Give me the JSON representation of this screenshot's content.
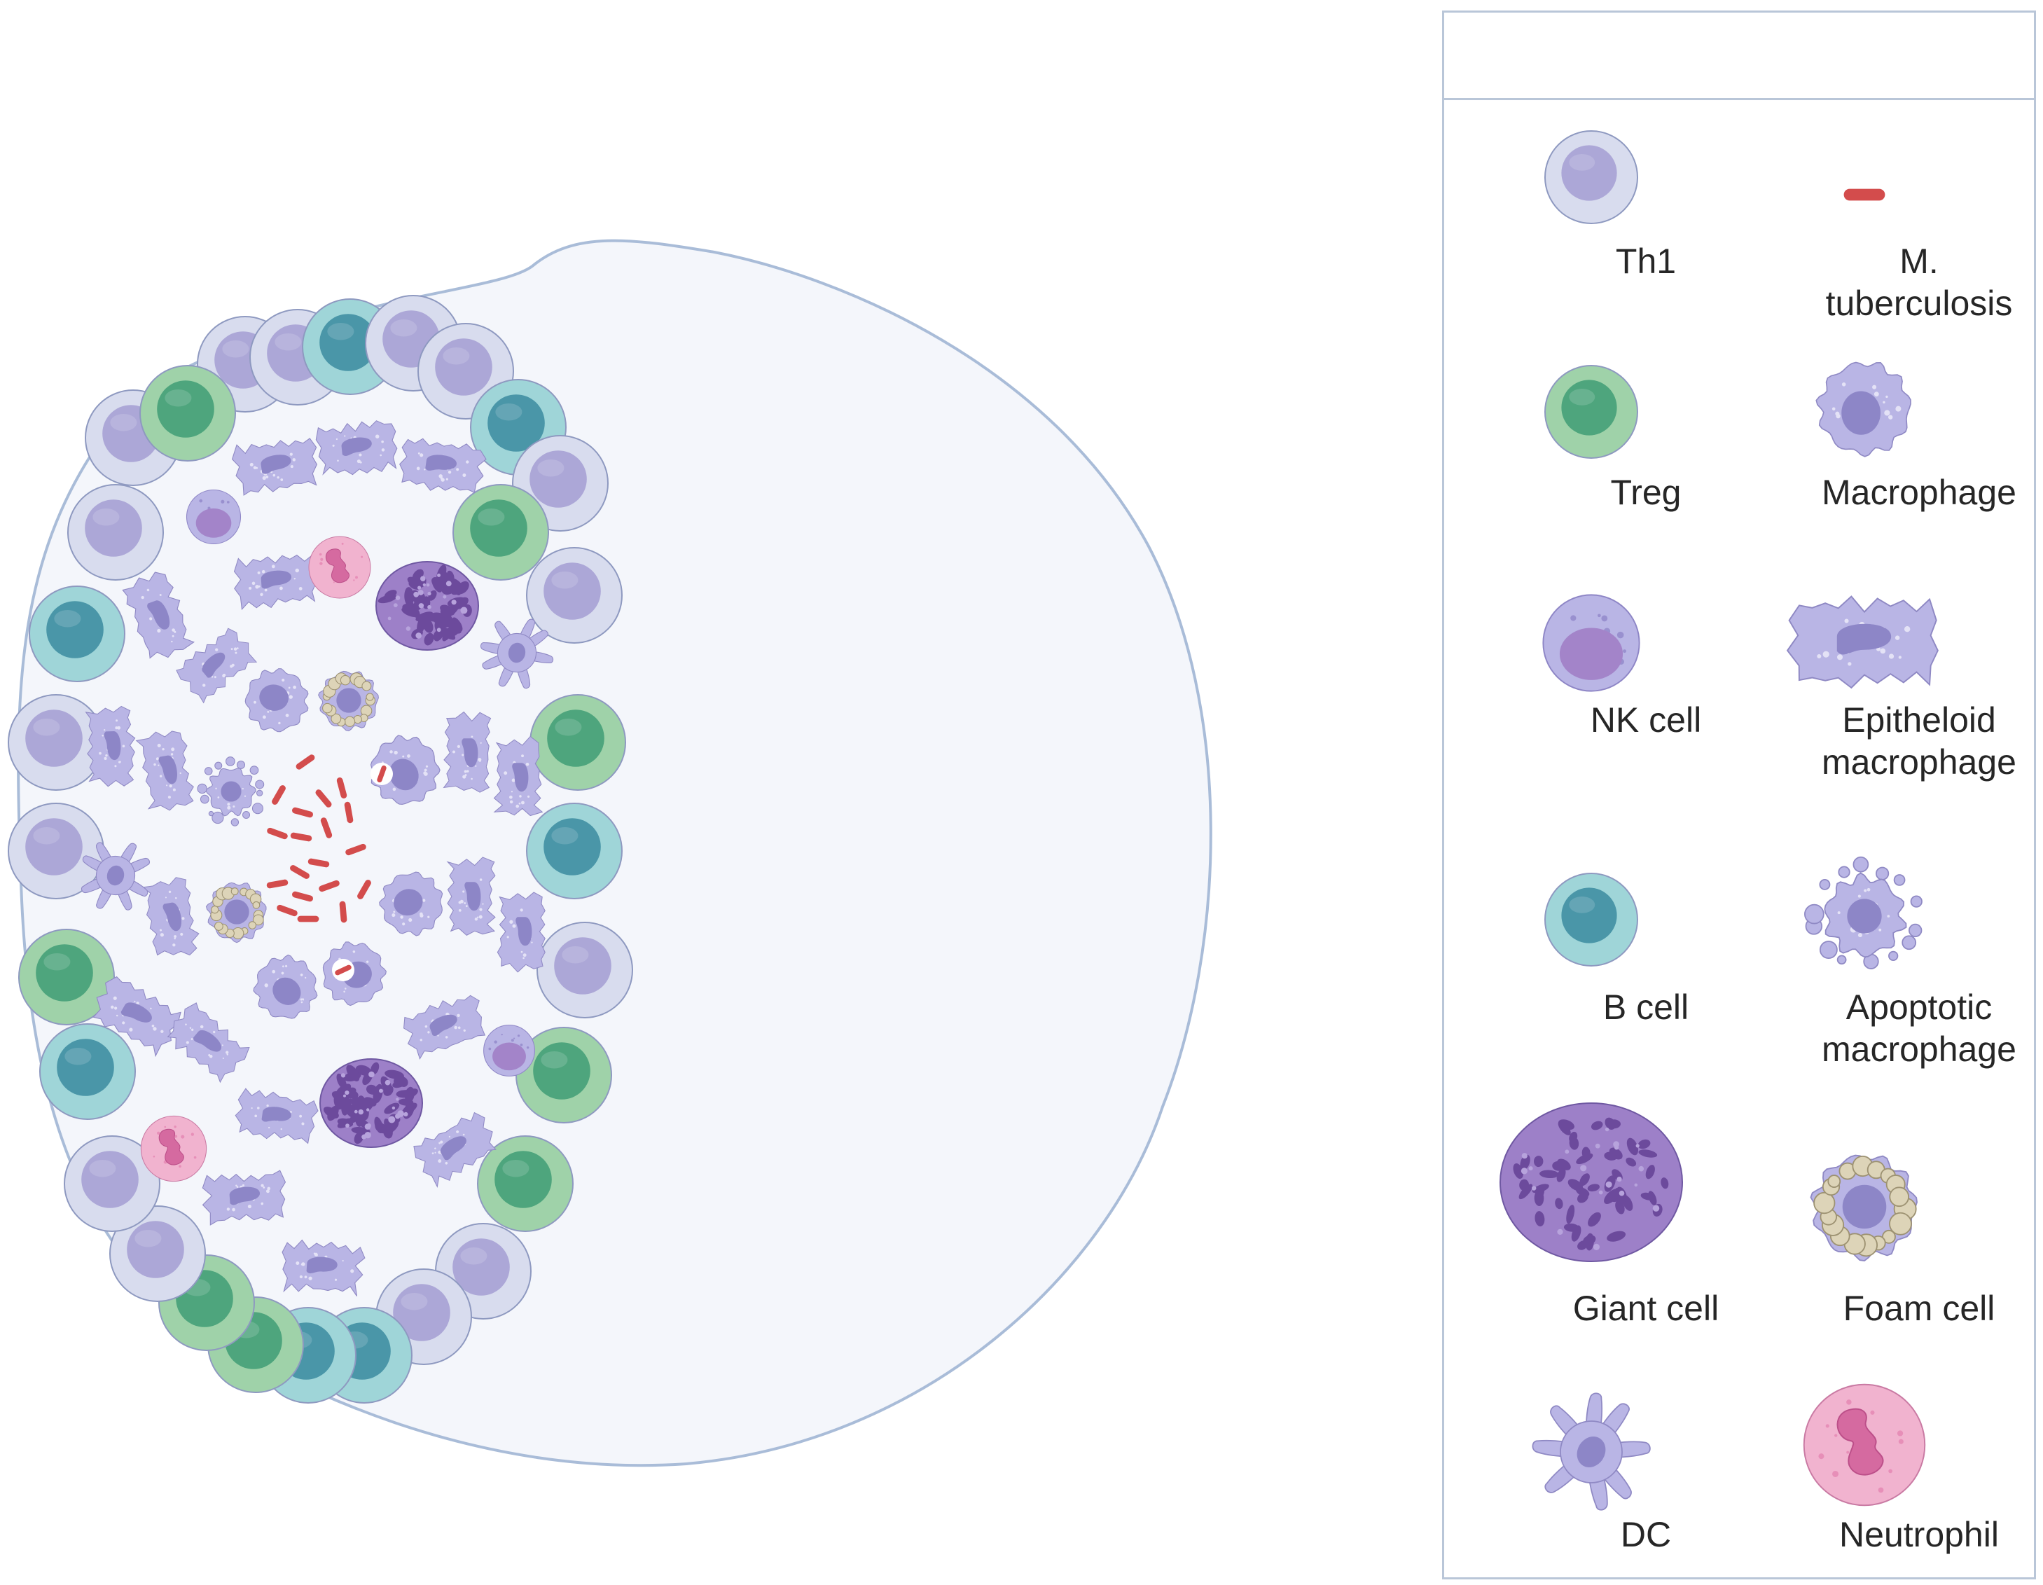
{
  "legend": {
    "title": "",
    "items": [
      {
        "key": "th1",
        "label": "Th1"
      },
      {
        "key": "mtb",
        "label": "M.\ntuberculosis"
      },
      {
        "key": "treg",
        "label": "Treg"
      },
      {
        "key": "macrophage",
        "label": "Macrophage"
      },
      {
        "key": "nk",
        "label": "NK cell"
      },
      {
        "key": "epi",
        "label": "Epitheloid\nmacrophage"
      },
      {
        "key": "bcell",
        "label": "B cell"
      },
      {
        "key": "apo",
        "label": "Apoptotic\nmacrophage"
      },
      {
        "key": "giant",
        "label": "Giant cell"
      },
      {
        "key": "foam",
        "label": "Foam cell"
      },
      {
        "key": "dc",
        "label": "DC"
      },
      {
        "key": "neutrophil",
        "label": "Neutrophil"
      }
    ]
  },
  "colors": {
    "background": "#f4f6fb",
    "outline": "#a9bcd8",
    "lymph_outer": "#d8dcee",
    "lymph_inner": "#aca7d7",
    "treg_outer": "#9fd2a9",
    "treg_inner": "#4ea57d",
    "bcell_outer": "#9fd5d8",
    "bcell_inner": "#4a96a8",
    "macrophage": "#b9b5e5",
    "macrophage_nucleus": "#8d86c7",
    "nk_nucleus": "#a384c9",
    "giant_cell": "#9d80c8",
    "giant_nuclei": "#6c4a9c",
    "neutrophil": "#f1b3cf",
    "neutrophil_nucleus": "#d56aa0",
    "foam_vacuole": "#ddd4b8",
    "bacteria": "#d34c4c"
  }
}
